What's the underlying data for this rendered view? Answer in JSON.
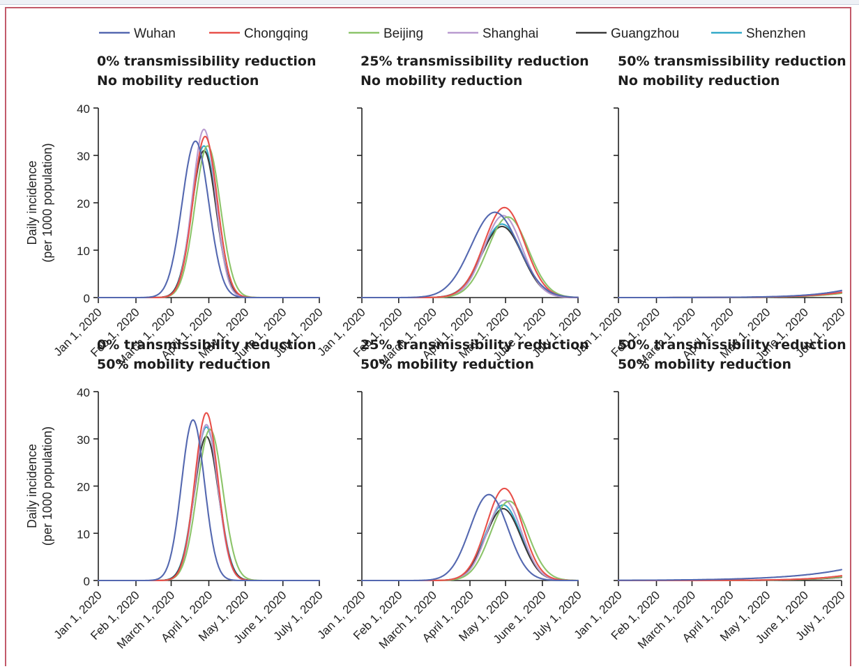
{
  "legend": [
    {
      "name": "Wuhan",
      "color": "#5468b0"
    },
    {
      "name": "Chongqing",
      "color": "#e8504a"
    },
    {
      "name": "Beijing",
      "color": "#8cc46a"
    },
    {
      "name": "Shanghai",
      "color": "#b99bd0"
    },
    {
      "name": "Guangzhou",
      "color": "#3a3a3a"
    },
    {
      "name": "Shenzhen",
      "color": "#33a9c8"
    }
  ],
  "chart_data": [
    {
      "type": "line",
      "title_line1": "0% transmissibility reduction",
      "title_line2": "No mobility reduction",
      "ylabel_line1": "Daily incidence",
      "ylabel_line2": "(per 1000 population)",
      "x_ticks": [
        "Jan 1, 2020",
        "Feb 1, 2020",
        "March 1, 2020",
        "April 1, 2020",
        "May 1, 2020",
        "June 1, 2020",
        "July 1, 2020"
      ],
      "y_ticks": [
        "0",
        "10",
        "20",
        "30",
        "40"
      ],
      "ylim": [
        0,
        40
      ],
      "series": [
        {
          "name": "Wuhan",
          "peak_date": "2020-03-21",
          "peak_value": 33,
          "width_days": 11
        },
        {
          "name": "Chongqing",
          "peak_date": "2020-03-29",
          "peak_value": 34,
          "width_days": 10
        },
        {
          "name": "Beijing",
          "peak_date": "2020-03-31",
          "peak_value": 32,
          "width_days": 10.5
        },
        {
          "name": "Shanghai",
          "peak_date": "2020-03-28",
          "peak_value": 35.5,
          "width_days": 9.5
        },
        {
          "name": "Guangzhou",
          "peak_date": "2020-03-28",
          "peak_value": 31,
          "width_days": 10
        },
        {
          "name": "Shenzhen",
          "peak_date": "2020-03-28",
          "peak_value": 32,
          "width_days": 10
        }
      ]
    },
    {
      "type": "line",
      "title_line1": "25% transmissibility reduction",
      "title_line2": "No mobility reduction",
      "x_ticks": [
        "Jan 1, 2020",
        "Feb 1, 2020",
        "March 1, 2020",
        "April 1, 2020",
        "May 1, 2020",
        "June 1, 2020",
        "July 1, 2020"
      ],
      "ylim": [
        0,
        40
      ],
      "series": [
        {
          "name": "Wuhan",
          "peak_date": "2020-04-22",
          "peak_value": 18,
          "width_days": 20
        },
        {
          "name": "Chongqing",
          "peak_date": "2020-04-30",
          "peak_value": 19,
          "width_days": 17
        },
        {
          "name": "Beijing",
          "peak_date": "2020-05-03",
          "peak_value": 17,
          "width_days": 17
        },
        {
          "name": "Shanghai",
          "peak_date": "2020-04-29",
          "peak_value": 17.3,
          "width_days": 16
        },
        {
          "name": "Guangzhou",
          "peak_date": "2020-04-28",
          "peak_value": 15,
          "width_days": 17
        },
        {
          "name": "Shenzhen",
          "peak_date": "2020-04-28",
          "peak_value": 15.5,
          "width_days": 17
        }
      ]
    },
    {
      "type": "line",
      "title_line1": "50% transmissibility reduction",
      "title_line2": "No mobility reduction",
      "x_ticks": [
        "Jan 1, 2020",
        "Feb 1, 2020",
        "March 1, 2020",
        "April 1, 2020",
        "May 1, 2020",
        "June 1, 2020",
        "July 1, 2020"
      ],
      "ylim": [
        0,
        40
      ],
      "series": [
        {
          "name": "Wuhan",
          "growth": {
            "end_value": 1.5,
            "rate_days": 28
          }
        },
        {
          "name": "Chongqing",
          "growth": {
            "end_value": 1.1,
            "rate_days": 28
          }
        },
        {
          "name": "Beijing",
          "growth": {
            "end_value": 0.9,
            "rate_days": 28
          }
        },
        {
          "name": "Shanghai",
          "growth": {
            "end_value": 1.2,
            "rate_days": 28
          }
        },
        {
          "name": "Guangzhou",
          "growth": {
            "end_value": 1.0,
            "rate_days": 28
          }
        },
        {
          "name": "Shenzhen",
          "growth": {
            "end_value": 1.1,
            "rate_days": 28
          }
        }
      ]
    },
    {
      "type": "line",
      "title_line1": "0% transmissibility reduction",
      "title_line2": "50% mobility reduction",
      "ylabel_line1": "Daily incidence",
      "ylabel_line2": "(per 1000 population)",
      "x_ticks": [
        "Jan 1, 2020",
        "Feb 1, 2020",
        "March 1, 2020",
        "April 1, 2020",
        "May 1, 2020",
        "June 1, 2020",
        "July 1, 2020"
      ],
      "y_ticks": [
        "0",
        "10",
        "20",
        "30",
        "40"
      ],
      "ylim": [
        0,
        40
      ],
      "series": [
        {
          "name": "Wuhan",
          "peak_date": "2020-03-19",
          "peak_value": 34,
          "width_days": 9.5
        },
        {
          "name": "Chongqing",
          "peak_date": "2020-03-30",
          "peak_value": 35.5,
          "width_days": 9.5
        },
        {
          "name": "Beijing",
          "peak_date": "2020-04-02",
          "peak_value": 32,
          "width_days": 10.5
        },
        {
          "name": "Shanghai",
          "peak_date": "2020-03-30",
          "peak_value": 33,
          "width_days": 9.5
        },
        {
          "name": "Guangzhou",
          "peak_date": "2020-03-30",
          "peak_value": 30.5,
          "width_days": 10
        },
        {
          "name": "Shenzhen",
          "peak_date": "2020-03-30",
          "peak_value": 32.5,
          "width_days": 10
        }
      ]
    },
    {
      "type": "line",
      "title_line1": "25% transmissibility reduction",
      "title_line2": "50% mobility reduction",
      "x_ticks": [
        "Jan 1, 2020",
        "Feb 1, 2020",
        "March 1, 2020",
        "April 1, 2020",
        "May 1, 2020",
        "June 1, 2020",
        "July 1, 2020"
      ],
      "ylim": [
        0,
        40
      ],
      "series": [
        {
          "name": "Wuhan",
          "peak_date": "2020-04-17",
          "peak_value": 18.2,
          "width_days": 16
        },
        {
          "name": "Chongqing",
          "peak_date": "2020-04-30",
          "peak_value": 19.5,
          "width_days": 15
        },
        {
          "name": "Beijing",
          "peak_date": "2020-05-04",
          "peak_value": 16.8,
          "width_days": 15.5
        },
        {
          "name": "Shanghai",
          "peak_date": "2020-04-30",
          "peak_value": 17,
          "width_days": 14.5
        },
        {
          "name": "Guangzhou",
          "peak_date": "2020-04-29",
          "peak_value": 15.2,
          "width_days": 15
        },
        {
          "name": "Shenzhen",
          "peak_date": "2020-04-29",
          "peak_value": 16,
          "width_days": 15
        }
      ]
    },
    {
      "type": "line",
      "title_line1": "50% transmissibility reduction",
      "title_line2": "50% mobility reduction",
      "x_ticks": [
        "Jan 1, 2020",
        "Feb 1, 2020",
        "March 1, 2020",
        "April 1, 2020",
        "May 1, 2020",
        "June 1, 2020",
        "July 1, 2020"
      ],
      "ylim": [
        0,
        40
      ],
      "series": [
        {
          "name": "Wuhan",
          "growth": {
            "end_value": 2.3,
            "rate_days": 45
          }
        },
        {
          "name": "Chongqing",
          "growth": {
            "end_value": 1.0,
            "rate_days": 28
          }
        },
        {
          "name": "Beijing",
          "growth": {
            "end_value": 0.8,
            "rate_days": 28
          }
        },
        {
          "name": "Shanghai",
          "growth": {
            "end_value": 1.0,
            "rate_days": 28
          }
        },
        {
          "name": "Guangzhou",
          "growth": {
            "end_value": 0.7,
            "rate_days": 28
          }
        },
        {
          "name": "Shenzhen",
          "growth": {
            "end_value": 0.9,
            "rate_days": 28
          }
        }
      ]
    }
  ]
}
